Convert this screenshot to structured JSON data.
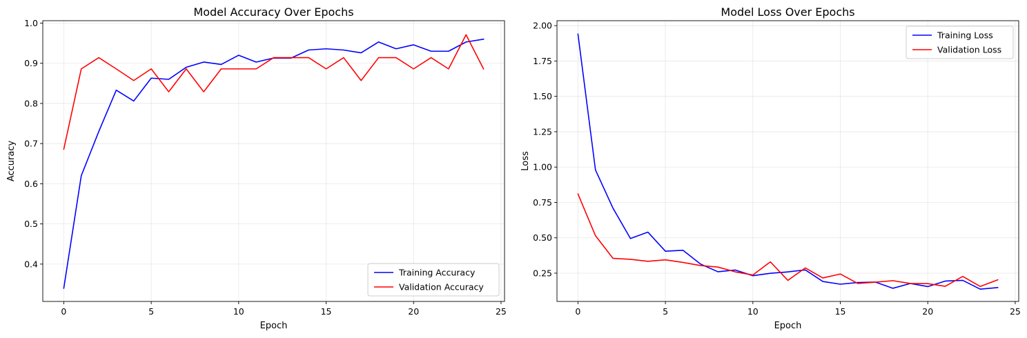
{
  "chart_data": [
    {
      "type": "line",
      "title": "Model Accuracy Over Epochs",
      "xlabel": "Epoch",
      "ylabel": "Accuracy",
      "xlim": [
        -1.2,
        25.2
      ],
      "ylim": [
        0.307,
        1.006
      ],
      "xticks": [
        0,
        5,
        10,
        15,
        20,
        25
      ],
      "yticks": [
        0.4,
        0.5,
        0.6,
        0.7,
        0.8,
        0.9,
        1.0
      ],
      "ytick_labels": [
        "0.4",
        "0.5",
        "0.6",
        "0.7",
        "0.8",
        "0.9",
        "1.0"
      ],
      "grid": true,
      "legend_position": "lower-right",
      "x": [
        0,
        1,
        2,
        3,
        4,
        5,
        6,
        7,
        8,
        9,
        10,
        11,
        12,
        13,
        14,
        15,
        16,
        17,
        18,
        19,
        20,
        21,
        22,
        23,
        24
      ],
      "series": [
        {
          "name": "Training Accuracy",
          "color": "#0000ff",
          "values": [
            0.34,
            0.62,
            0.73,
            0.833,
            0.806,
            0.863,
            0.86,
            0.89,
            0.903,
            0.897,
            0.92,
            0.903,
            0.913,
            0.913,
            0.933,
            0.936,
            0.933,
            0.926,
            0.953,
            0.936,
            0.946,
            0.93,
            0.93,
            0.953,
            0.96
          ]
        },
        {
          "name": "Validation Accuracy",
          "color": "#ff0000",
          "values": [
            0.686,
            0.886,
            0.914,
            0.886,
            0.857,
            0.886,
            0.829,
            0.886,
            0.829,
            0.886,
            0.886,
            0.886,
            0.914,
            0.914,
            0.914,
            0.886,
            0.914,
            0.857,
            0.914,
            0.914,
            0.886,
            0.914,
            0.886,
            0.971,
            0.886
          ]
        }
      ]
    },
    {
      "type": "line",
      "title": "Model Loss Over Epochs",
      "xlabel": "Epoch",
      "ylabel": "Loss",
      "xlim": [
        -1.2,
        25.2
      ],
      "ylim": [
        0.05,
        2.035
      ],
      "xticks": [
        0,
        5,
        10,
        15,
        20,
        25
      ],
      "yticks": [
        0.25,
        0.5,
        0.75,
        1.0,
        1.25,
        1.5,
        1.75,
        2.0
      ],
      "ytick_labels": [
        "0.25",
        "0.50",
        "0.75",
        "1.00",
        "1.25",
        "1.50",
        "1.75",
        "2.00"
      ],
      "grid": true,
      "legend_position": "upper-right",
      "x": [
        0,
        1,
        2,
        3,
        4,
        5,
        6,
        7,
        8,
        9,
        10,
        11,
        12,
        13,
        14,
        15,
        16,
        17,
        18,
        19,
        20,
        21,
        22,
        23,
        24
      ],
      "series": [
        {
          "name": "Training Loss",
          "color": "#0000ff",
          "values": [
            1.94,
            0.98,
            0.71,
            0.495,
            0.54,
            0.405,
            0.412,
            0.315,
            0.26,
            0.272,
            0.232,
            0.249,
            0.259,
            0.273,
            0.191,
            0.172,
            0.184,
            0.187,
            0.143,
            0.177,
            0.155,
            0.194,
            0.199,
            0.137,
            0.148
          ]
        },
        {
          "name": "Validation Loss",
          "color": "#ff0000",
          "values": [
            0.81,
            0.515,
            0.355,
            0.348,
            0.334,
            0.344,
            0.326,
            0.304,
            0.293,
            0.259,
            0.237,
            0.33,
            0.199,
            0.287,
            0.216,
            0.244,
            0.177,
            0.186,
            0.197,
            0.177,
            0.176,
            0.157,
            0.227,
            0.156,
            0.203
          ]
        }
      ]
    }
  ]
}
